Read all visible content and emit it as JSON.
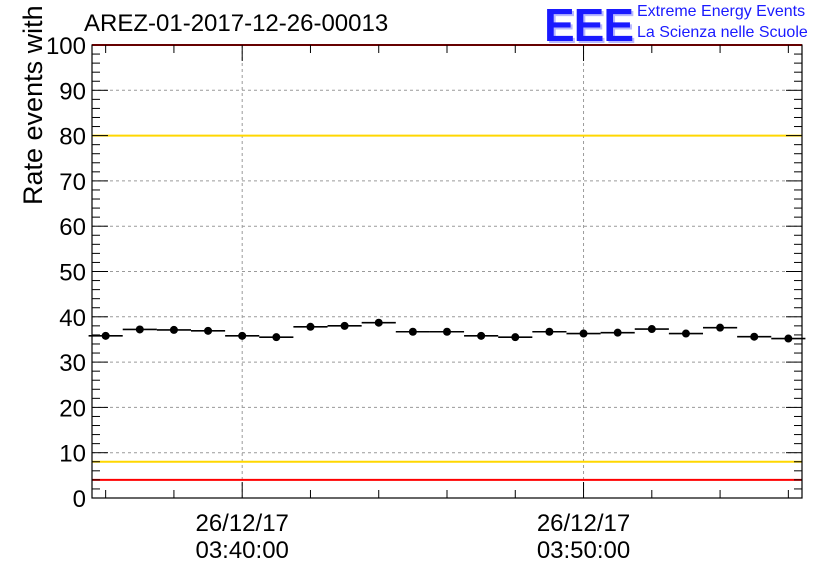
{
  "header": {
    "title": "AREZ-01-2017-12-26-00013",
    "logo_text": "EEE",
    "logo_line1": "Extreme Energy Events",
    "logo_line2": "La Scienza nelle Scuole"
  },
  "colors": {
    "threshold_red": "#ff0000",
    "threshold_yellow": "#ffd700",
    "logo_blue": "#1a1aff",
    "marker": "#000000"
  },
  "chart_data": {
    "type": "scatter",
    "title": "AREZ-01-2017-12-26-00013",
    "xlabel": "",
    "ylabel": "Rate events with hits [Hz]",
    "ylim": [
      0,
      100
    ],
    "yticks": [
      0,
      10,
      20,
      30,
      40,
      50,
      60,
      70,
      80,
      90,
      100
    ],
    "xlim": [
      "2017-12-26 03:35:36",
      "2017-12-26 03:56:24"
    ],
    "xticks": [
      {
        "date": "26/12/17",
        "time": "03:40:00"
      },
      {
        "date": "26/12/17",
        "time": "03:50:00"
      }
    ],
    "grid": true,
    "bin_minutes": 1,
    "x": [
      "03:36",
      "03:37",
      "03:38",
      "03:39",
      "03:40",
      "03:41",
      "03:42",
      "03:43",
      "03:44",
      "03:45",
      "03:46",
      "03:47",
      "03:48",
      "03:49",
      "03:50",
      "03:51",
      "03:52",
      "03:53",
      "03:54",
      "03:55",
      "03:56"
    ],
    "values": [
      35.8,
      37.2,
      37.1,
      36.9,
      35.8,
      35.5,
      37.8,
      38.0,
      38.7,
      36.7,
      36.7,
      35.8,
      35.5,
      36.7,
      36.3,
      36.5,
      37.3,
      36.3,
      37.6,
      35.6,
      35.2
    ],
    "reference_lines": [
      {
        "value": 100,
        "color": "#ff0000"
      },
      {
        "value": 80,
        "color": "#ffd700"
      },
      {
        "value": 8,
        "color": "#ffd700"
      },
      {
        "value": 4,
        "color": "#ff0000"
      }
    ]
  }
}
